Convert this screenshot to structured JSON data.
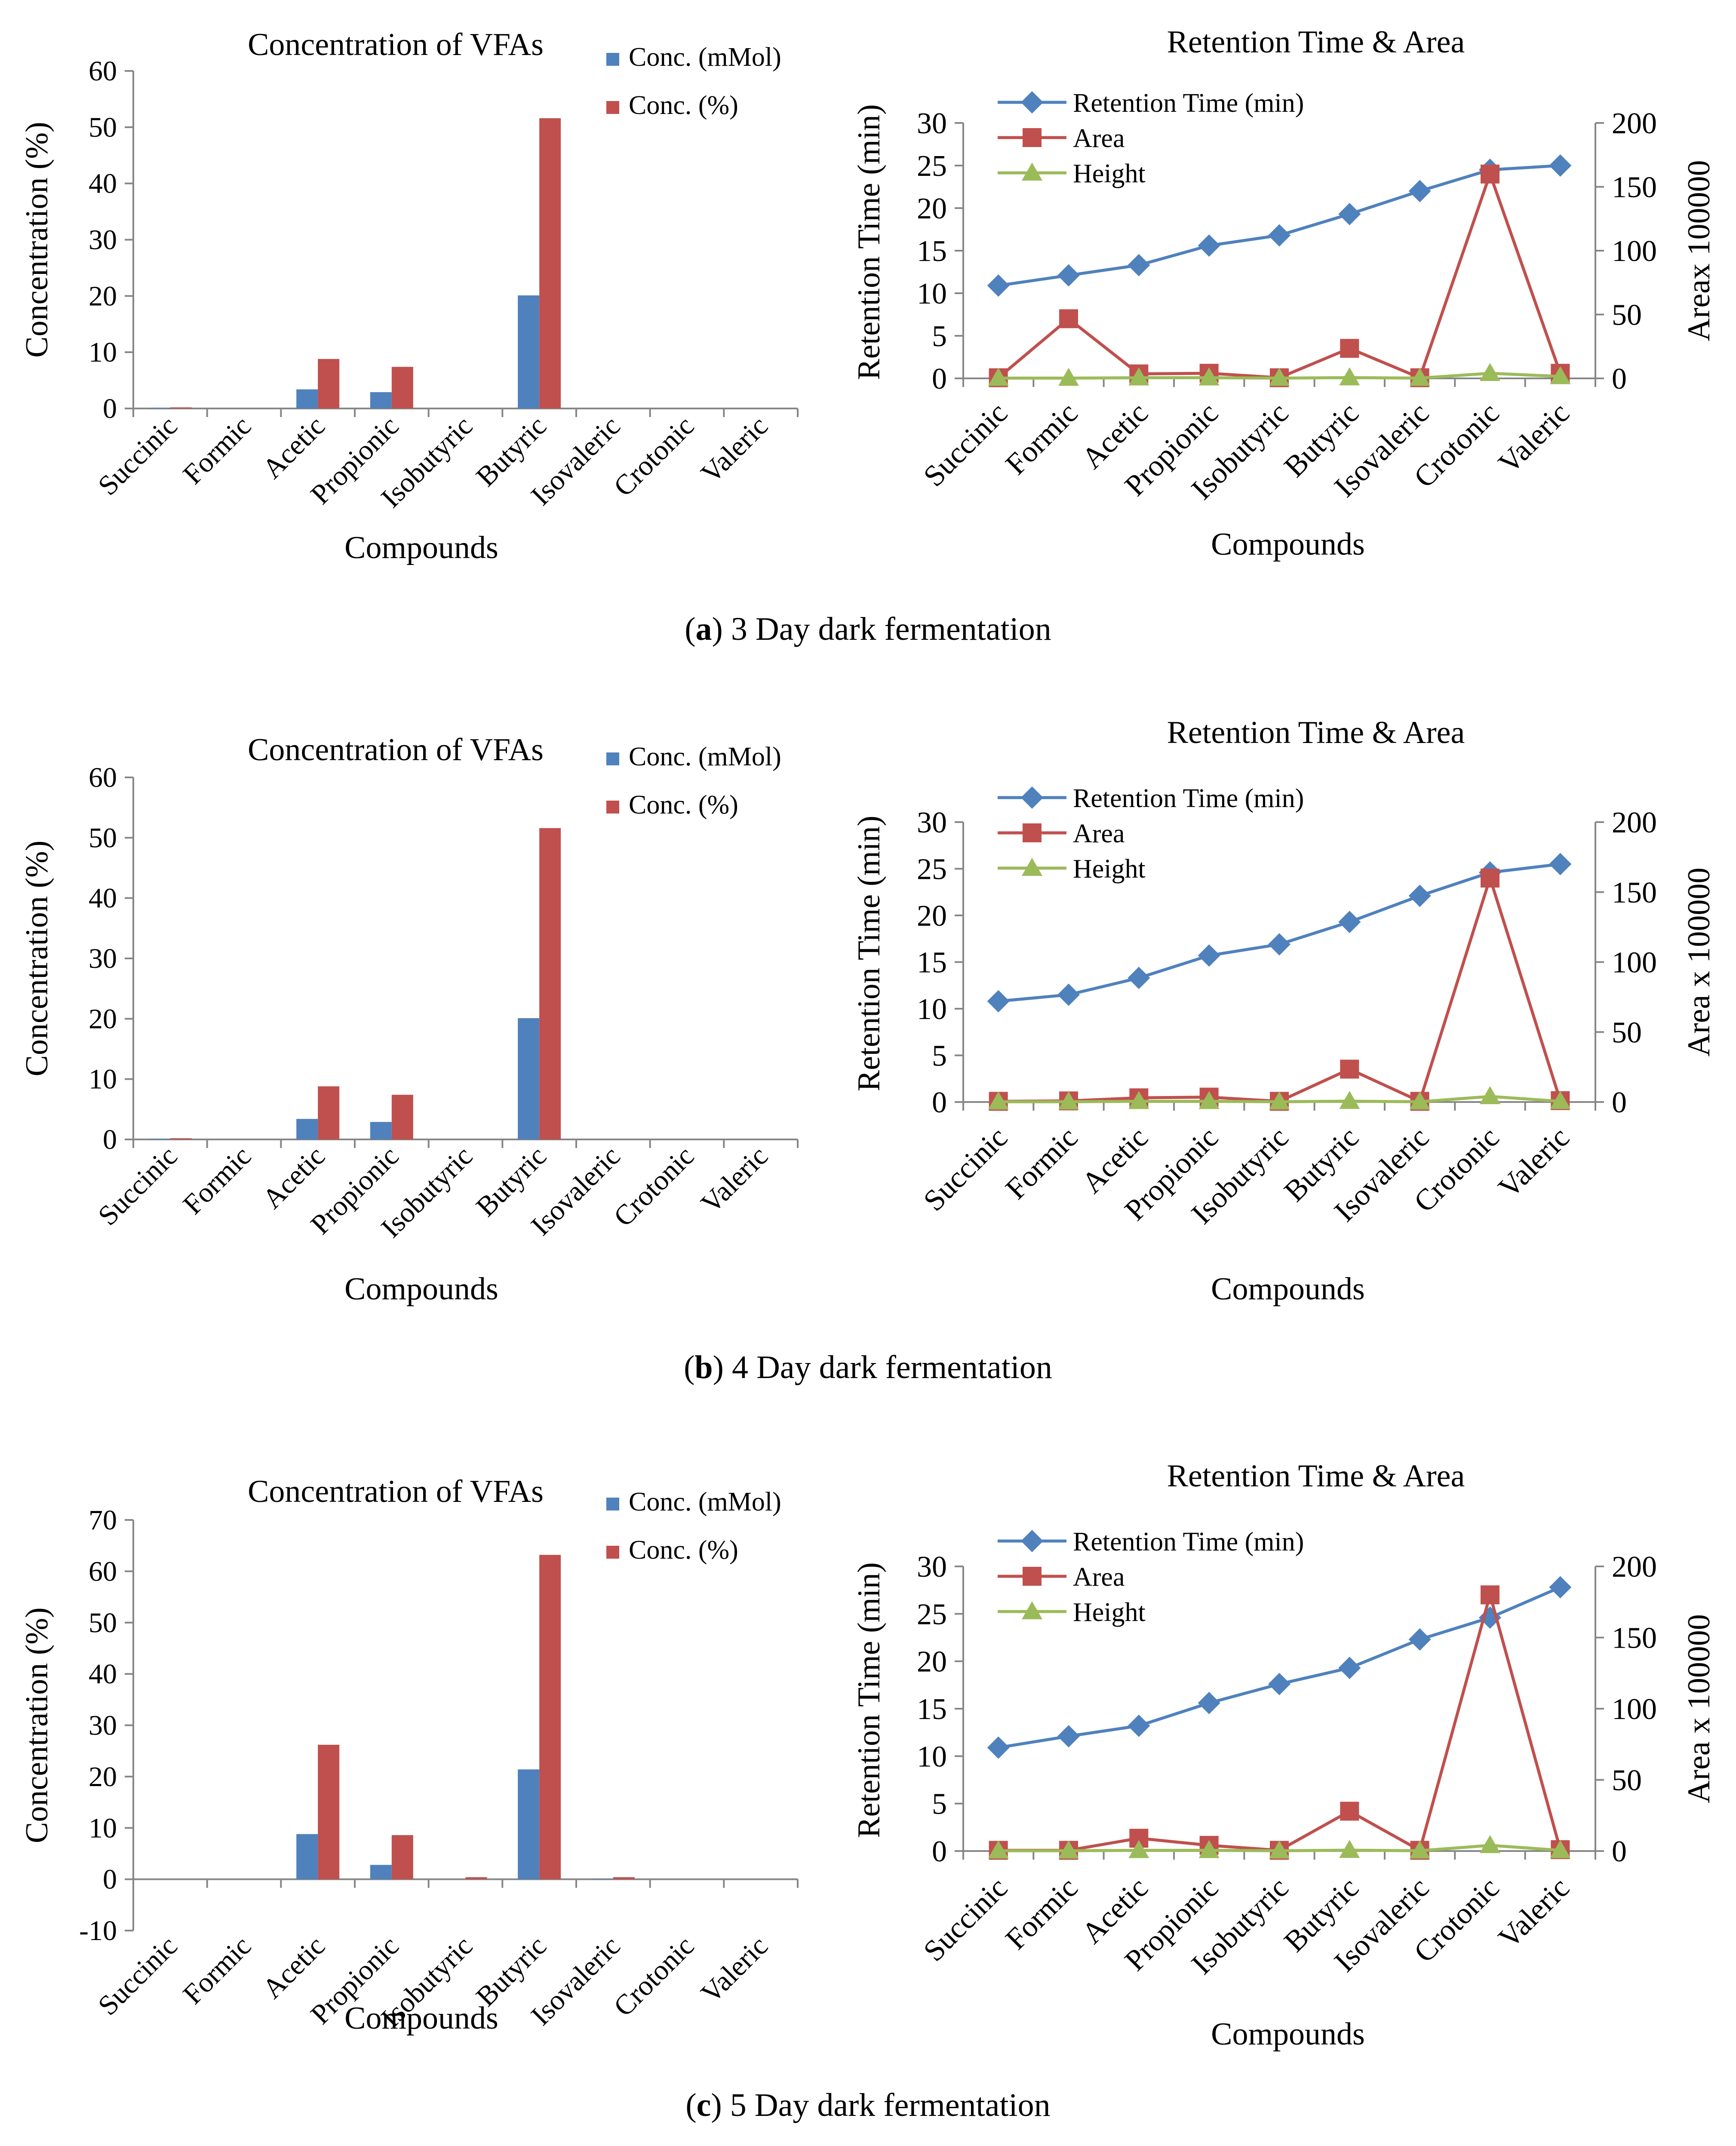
{
  "colors": {
    "conc_mmol": "#4F81BD",
    "conc_pct": "#C0504D",
    "retention": "#4F81BD",
    "area": "#C0504D",
    "height": "#9BBB59",
    "axis": "#868686"
  },
  "captions": [
    {
      "letter": "a",
      "text": " 3 Day dark fermentation"
    },
    {
      "letter": "b",
      "text": " 4 Day dark fermentation"
    },
    {
      "letter": "c",
      "text": " 5 Day dark fermentation"
    }
  ],
  "chart_data": [
    {
      "panel": "a",
      "type": "bar",
      "title": "Concentration of VFAs",
      "xlabel": "Compounds",
      "ylabel": "Concentration (%)",
      "ylim": [
        0,
        60
      ],
      "yticks": [
        0,
        10,
        20,
        30,
        40,
        50,
        60
      ],
      "categories": [
        "Succinic",
        "Formic",
        "Acetic",
        "Propionic",
        "Isobutyric",
        "Butyric",
        "Isovaleric",
        "Crotonic",
        "Valeric"
      ],
      "series": [
        {
          "name": "Conc. (mMol)",
          "values": [
            0.1,
            0,
            3.4,
            2.9,
            0,
            20.1,
            0,
            0,
            0
          ]
        },
        {
          "name": "Conc. (%)",
          "values": [
            0.2,
            0,
            8.8,
            7.4,
            0,
            51.6,
            0,
            0,
            0
          ]
        }
      ],
      "legend": "top-right",
      "grid": false
    },
    {
      "panel": "a",
      "type": "line",
      "title": "Retention Time & Area",
      "xlabel": "Compounds",
      "ylabel": "Retention Time (min)",
      "y2label": "Areax 100000",
      "ylim": [
        0,
        30
      ],
      "yticks": [
        0,
        5,
        10,
        15,
        20,
        25,
        30
      ],
      "y2lim": [
        0,
        200
      ],
      "y2ticks": [
        0,
        50,
        100,
        150,
        200
      ],
      "categories": [
        "Succinic",
        "Formic",
        "Acetic",
        "Propionic",
        "Isobutyric",
        "Butyric",
        "Isovaleric",
        "Crotonic",
        "Valeric"
      ],
      "series": [
        {
          "name": "Retention Time (min)",
          "axis": "left",
          "marker": "diamond",
          "values": [
            10.9,
            12.1,
            13.3,
            15.6,
            16.8,
            19.3,
            22.0,
            24.5,
            25.0
          ]
        },
        {
          "name": "Area",
          "axis": "right",
          "marker": "square",
          "values": [
            0.5,
            46.7,
            3.5,
            4.0,
            0.5,
            23.5,
            0.5,
            160.0,
            4.0
          ]
        },
        {
          "name": "Height",
          "axis": "right",
          "marker": "triangle",
          "values": [
            0.2,
            0.2,
            0.5,
            0.5,
            0.2,
            0.6,
            0.2,
            4.0,
            1.5
          ]
        }
      ],
      "legend": "top-left",
      "grid": false
    },
    {
      "panel": "b",
      "type": "bar",
      "title": "Concentration of VFAs",
      "xlabel": "Compounds",
      "ylabel": "Concentration (%)",
      "ylim": [
        0,
        60
      ],
      "yticks": [
        0,
        10,
        20,
        30,
        40,
        50,
        60
      ],
      "categories": [
        "Succinic",
        "Formic",
        "Acetic",
        "Propionic",
        "Isobutyric",
        "Butyric",
        "Isovaleric",
        "Crotonic",
        "Valeric"
      ],
      "series": [
        {
          "name": "Conc. (mMol)",
          "values": [
            0.1,
            0,
            3.4,
            2.9,
            0,
            20.1,
            0,
            0,
            0
          ]
        },
        {
          "name": "Conc. (%)",
          "values": [
            0.2,
            0,
            8.8,
            7.4,
            0,
            51.6,
            0,
            0,
            0
          ]
        }
      ],
      "legend": "top-right",
      "grid": false
    },
    {
      "panel": "b",
      "type": "line",
      "title": "Retention Time & Area",
      "xlabel": "Compounds",
      "ylabel": "Retention Time (min)",
      "y2label": "Area x 100000",
      "ylim": [
        0,
        30
      ],
      "yticks": [
        0,
        5,
        10,
        15,
        20,
        25,
        30
      ],
      "y2lim": [
        0,
        200
      ],
      "y2ticks": [
        0,
        50,
        100,
        150,
        200
      ],
      "categories": [
        "Succinic",
        "Formic",
        "Acetic",
        "Propionic",
        "Isobutyric",
        "Butyric",
        "Isovaleric",
        "Crotonic",
        "Valeric"
      ],
      "series": [
        {
          "name": "Retention Time (min)",
          "axis": "left",
          "marker": "diamond",
          "values": [
            10.8,
            11.5,
            13.3,
            15.7,
            16.9,
            19.3,
            22.1,
            24.6,
            25.5
          ]
        },
        {
          "name": "Area",
          "axis": "right",
          "marker": "square",
          "values": [
            0.5,
            0.8,
            3.0,
            3.5,
            0.5,
            23.5,
            0.5,
            160.0,
            1.0
          ]
        },
        {
          "name": "Height",
          "axis": "right",
          "marker": "triangle",
          "values": [
            0.2,
            0.2,
            0.5,
            0.5,
            0.2,
            0.6,
            0.2,
            4.0,
            0.5
          ]
        }
      ],
      "legend": "top-left",
      "grid": false
    },
    {
      "panel": "c",
      "type": "bar",
      "title": "Concentration of VFAs",
      "xlabel": "Compounds",
      "ylabel": "Concentration (%)",
      "ylim": [
        -10,
        70
      ],
      "yticks": [
        -10,
        0,
        10,
        20,
        30,
        40,
        50,
        60,
        70
      ],
      "categories": [
        "Succinic",
        "Formic",
        "Acetic",
        "Propionic",
        "Isobutyric",
        "Butyric",
        "Isovaleric",
        "Crotonic",
        "Valeric"
      ],
      "series": [
        {
          "name": "Conc. (mMol)",
          "values": [
            0,
            0,
            8.8,
            2.8,
            0,
            21.4,
            0.1,
            0,
            0
          ]
        },
        {
          "name": "Conc. (%)",
          "values": [
            0,
            0,
            26.2,
            8.6,
            0.4,
            63.2,
            0.4,
            0,
            0
          ]
        }
      ],
      "legend": "top-right",
      "grid": false
    },
    {
      "panel": "c",
      "type": "line",
      "title": "Retention Time & Area",
      "xlabel": "Compounds",
      "ylabel": "Retention Time (min)",
      "y2label": "Area x 100000",
      "ylim": [
        0,
        30
      ],
      "yticks": [
        0,
        5,
        10,
        15,
        20,
        25,
        30
      ],
      "y2lim": [
        0,
        200
      ],
      "y2ticks": [
        0,
        50,
        100,
        150,
        200
      ],
      "categories": [
        "Succinic",
        "Formic",
        "Acetic",
        "Propionic",
        "Isobutyric",
        "Butyric",
        "Isovaleric",
        "Crotonic",
        "Valeric"
      ],
      "series": [
        {
          "name": "Retention Time (min)",
          "axis": "left",
          "marker": "diamond",
          "values": [
            10.9,
            12.1,
            13.2,
            15.6,
            17.6,
            19.3,
            22.3,
            24.6,
            27.8
          ]
        },
        {
          "name": "Area",
          "axis": "right",
          "marker": "square",
          "values": [
            0.5,
            0.5,
            9.0,
            4.0,
            0.5,
            28.0,
            0.5,
            180.0,
            1.0
          ]
        },
        {
          "name": "Height",
          "axis": "right",
          "marker": "triangle",
          "values": [
            0.2,
            0.2,
            0.5,
            0.5,
            0.2,
            0.6,
            0.2,
            4.0,
            0.5
          ]
        }
      ],
      "legend": "top-left",
      "grid": false
    }
  ]
}
